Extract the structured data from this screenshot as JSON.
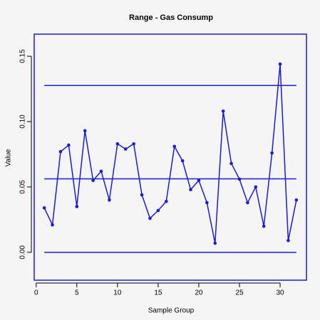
{
  "chart_data": {
    "type": "line",
    "title": "Range - Gas Consump",
    "x_label": "Sample Group",
    "y_label": "Value",
    "x": [
      1,
      2,
      3,
      4,
      5,
      6,
      7,
      8,
      9,
      10,
      11,
      12,
      13,
      14,
      15,
      16,
      17,
      18,
      19,
      20,
      21,
      22,
      23,
      24,
      25,
      26,
      27,
      28,
      29,
      30,
      31,
      32
    ],
    "series": [
      {
        "color": "#1a1adf",
        "values": [
          0.034,
          0.021,
          0.077,
          0.082,
          0.035,
          0.093,
          0.055,
          0.062,
          0.04,
          0.083,
          0.079,
          0.083,
          0.044,
          0.026,
          0.032,
          0.039,
          0.081,
          0.07,
          0.048,
          0.055,
          0.038,
          0.007,
          0.108,
          0.068,
          0.056,
          0.038,
          0.05,
          0.02,
          0.076,
          0.144,
          0.009,
          0.04
        ]
      }
    ],
    "reference_lines": [
      0,
      0.0562,
      0.1276
    ],
    "xlim": [
      -0.24,
      33.24
    ],
    "ylim": [
      -0.0213,
      0.1669
    ],
    "xticks": [
      0,
      5,
      10,
      15,
      20,
      25,
      30
    ],
    "yticks": [
      {
        "value": 0,
        "label": "0.00"
      },
      {
        "value": 0.05,
        "label": "0.05"
      },
      {
        "value": 0.1,
        "label": "0.10"
      },
      {
        "value": 0.15,
        "label": "0.15"
      }
    ]
  }
}
